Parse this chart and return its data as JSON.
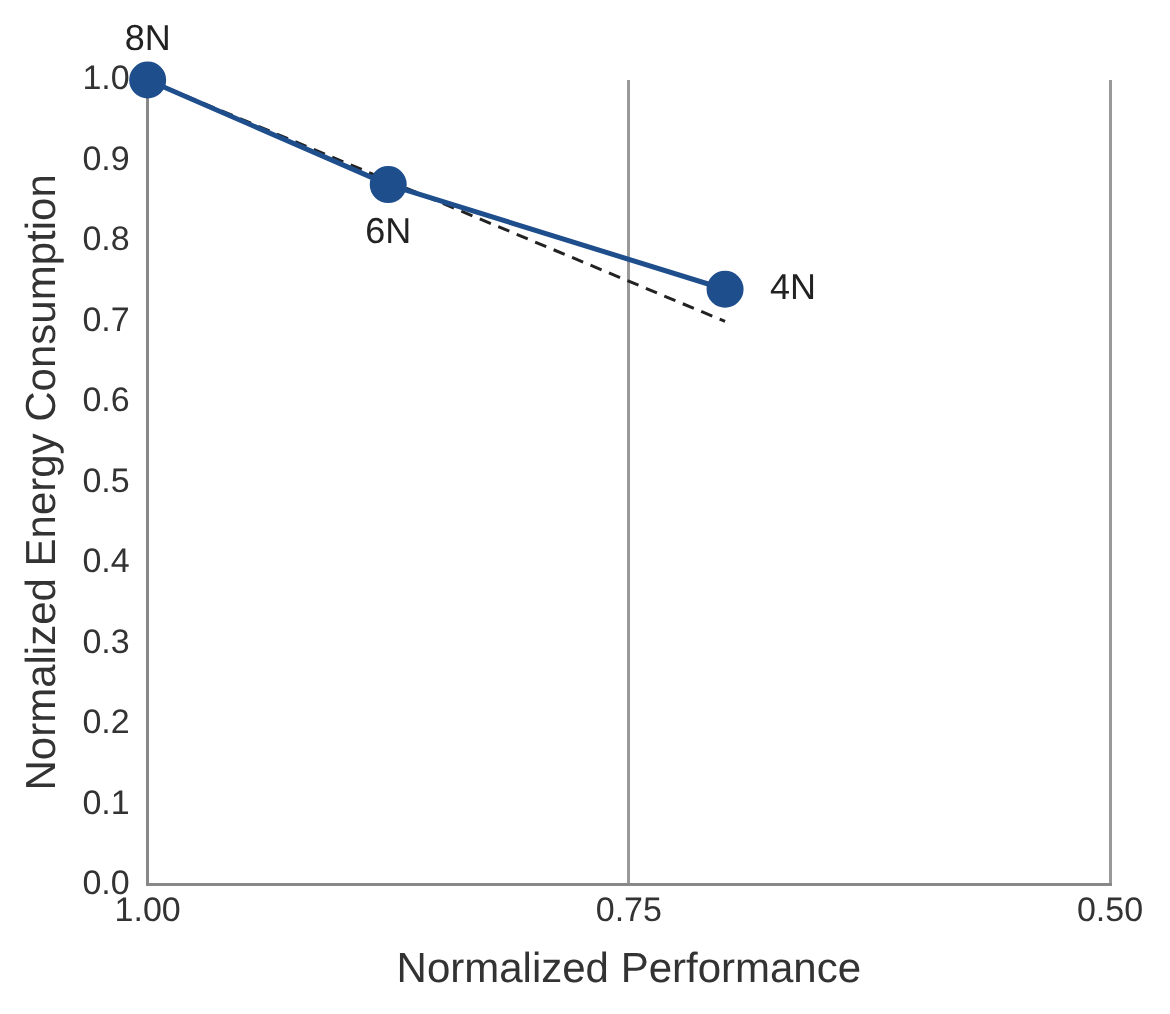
{
  "chart_data": {
    "type": "line",
    "xlabel": "Normalized Performance",
    "ylabel": "Normalized Energy Consumption",
    "xlim": [
      1.0,
      0.5
    ],
    "xticks": [
      {
        "value": 1.0,
        "label": "1.00"
      },
      0.75,
      {
        "value": 0.5,
        "label": "0.50"
      }
    ],
    "ylim": [
      0,
      1.0
    ],
    "yticks": [
      {
        "value": 0,
        "label": "0.0"
      },
      0.1,
      0.2,
      0.3,
      0.4,
      0.5,
      0.6,
      0.7,
      0.8,
      0.9,
      {
        "value": 1.0,
        "label": "1.0"
      }
    ],
    "grid": "x",
    "legend": false,
    "series": [
      {
        "color": "#1f4e8c",
        "x": [
          1.0,
          0.875,
          0.7
        ],
        "values": [
          1.0,
          0.87,
          0.74
        ],
        "marker": "circle",
        "line_style": "solid"
      },
      {
        "color": "#222222",
        "x": [
          1.0,
          0.7
        ],
        "values": [
          1.0,
          0.7
        ],
        "marker": "none",
        "line_style": "dashed"
      }
    ],
    "annotations": [
      {
        "text": "8N",
        "x": 1.0,
        "y": 1.0
      },
      {
        "text": "6N",
        "x": 0.875,
        "y": 0.87
      },
      {
        "text": "4N",
        "x": 0.7,
        "y": 0.74
      }
    ]
  }
}
